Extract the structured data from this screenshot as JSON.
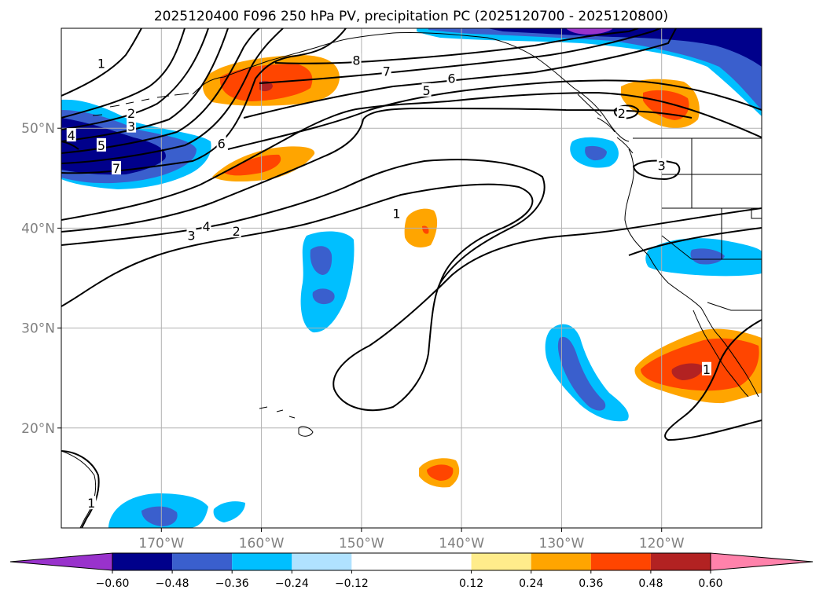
{
  "chart_data": {
    "type": "heatmap",
    "title": "2025120400 F096 250 hPa PV, precipitation PC (2025120700 - 2025120800)",
    "projection": "lat-lon map, North Pacific and western North America",
    "lon_range": [
      -180,
      -110
    ],
    "lat_range": [
      10,
      60
    ],
    "x_ticks": [
      -170,
      -160,
      -150,
      -140,
      -130,
      -120
    ],
    "x_tick_labels": [
      "170°W",
      "160°W",
      "150°W",
      "140°W",
      "130°W",
      "120°W"
    ],
    "y_ticks": [
      20,
      30,
      40,
      50
    ],
    "y_tick_labels": [
      "20°N",
      "30°N",
      "40°N",
      "50°N"
    ],
    "grid": true,
    "fill_variable": "precipitation PC",
    "contour_variable": "250 hPa PV",
    "contour_levels": [
      1,
      2,
      3,
      4,
      5,
      6,
      7,
      8
    ],
    "contour_labels": [
      {
        "text": "1",
        "lon": -176,
        "lat": 56.5
      },
      {
        "text": "2",
        "lon": -173,
        "lat": 51.5
      },
      {
        "text": "3",
        "lon": -173,
        "lat": 50.2
      },
      {
        "text": "4",
        "lon": -179,
        "lat": 49.3
      },
      {
        "text": "5",
        "lon": -176,
        "lat": 48.3
      },
      {
        "text": "6",
        "lon": -164,
        "lat": 48.5
      },
      {
        "text": "7",
        "lon": -174.5,
        "lat": 46
      },
      {
        "text": "8",
        "lon": -150.5,
        "lat": 56.8
      },
      {
        "text": "7",
        "lon": -147.5,
        "lat": 55.7
      },
      {
        "text": "6",
        "lon": -141,
        "lat": 55
      },
      {
        "text": "5",
        "lon": -143.5,
        "lat": 53.8
      },
      {
        "text": "2",
        "lon": -124,
        "lat": 51.5
      },
      {
        "text": "3",
        "lon": -120,
        "lat": 46.3
      },
      {
        "text": "4",
        "lon": -165.5,
        "lat": 40.2
      },
      {
        "text": "3",
        "lon": -167,
        "lat": 39.3
      },
      {
        "text": "2",
        "lon": -162.5,
        "lat": 39.7
      },
      {
        "text": "1",
        "lon": -146.5,
        "lat": 41.5
      },
      {
        "text": "1",
        "lon": -115.5,
        "lat": 25.9
      },
      {
        "text": "1",
        "lon": -177,
        "lat": 12.5
      }
    ],
    "colorbar": {
      "boundaries": [
        -0.6,
        -0.48,
        -0.36,
        -0.24,
        -0.12,
        0.12,
        0.24,
        0.36,
        0.48,
        0.6
      ],
      "tick_labels": [
        "−0.60",
        "−0.48",
        "−0.36",
        "−0.24",
        "−0.12",
        "0.12",
        "0.24",
        "0.36",
        "0.48",
        "0.60"
      ],
      "colors": [
        "#9932cc",
        "#00008b",
        "#3a5fcd",
        "#00bfff",
        "#b0e2ff",
        "#ffffff",
        "#ffec8b",
        "#ffa500",
        "#ff4500",
        "#b22222",
        "#ff82ab"
      ],
      "extend": "both"
    }
  }
}
